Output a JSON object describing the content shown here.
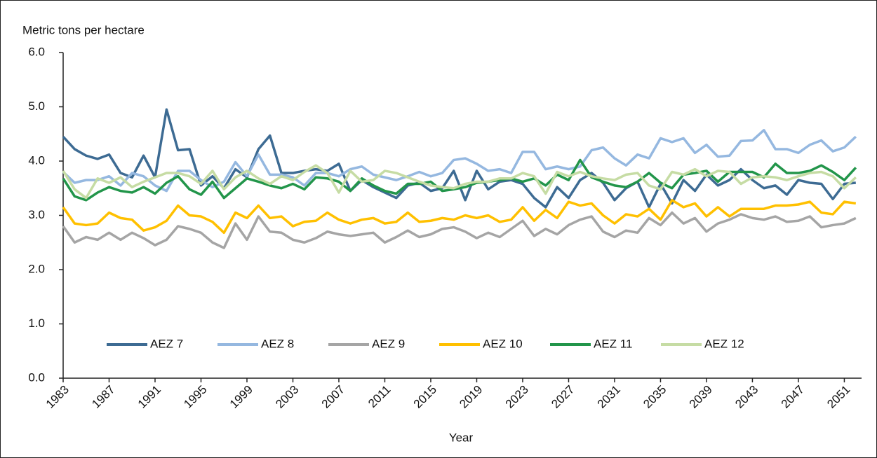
{
  "chart_data": {
    "type": "line",
    "y_label": "Metric tons per hectare",
    "x_label": "Year",
    "x": [
      1983,
      1984,
      1985,
      1986,
      1987,
      1988,
      1989,
      1990,
      1991,
      1992,
      1993,
      1994,
      1995,
      1996,
      1997,
      1998,
      1999,
      2000,
      2001,
      2002,
      2003,
      2004,
      2005,
      2006,
      2007,
      2008,
      2009,
      2010,
      2011,
      2012,
      2013,
      2014,
      2015,
      2016,
      2017,
      2018,
      2019,
      2020,
      2021,
      2022,
      2023,
      2024,
      2025,
      2026,
      2027,
      2028,
      2029,
      2030,
      2031,
      2032,
      2033,
      2034,
      2035,
      2036,
      2037,
      2038,
      2039,
      2040,
      2041,
      2042,
      2043,
      2044,
      2045,
      2046,
      2047,
      2048,
      2049,
      2050,
      2051,
      2052
    ],
    "xlim": [
      1983,
      2052.5
    ],
    "xticks": [
      1983,
      1987,
      1991,
      1995,
      1999,
      2003,
      2007,
      2011,
      2015,
      2019,
      2023,
      2027,
      2031,
      2035,
      2039,
      2043,
      2047,
      2051
    ],
    "ylim": [
      0,
      6
    ],
    "yticks": [
      {
        "value": 0,
        "label": "0.0"
      },
      {
        "value": 1,
        "label": "1.0"
      },
      {
        "value": 2,
        "label": "2.0"
      },
      {
        "value": 3,
        "label": "3.0"
      },
      {
        "value": 4,
        "label": "4.0"
      },
      {
        "value": 5,
        "label": "5.0"
      },
      {
        "value": 6,
        "label": "6.0"
      }
    ],
    "grid": false,
    "legend": "bottom",
    "series": [
      {
        "name": "AEZ 7",
        "color": "#3d6b93",
        "values": [
          4.45,
          4.22,
          4.1,
          4.04,
          4.12,
          3.78,
          3.7,
          4.1,
          3.7,
          4.95,
          4.2,
          4.22,
          3.55,
          3.72,
          3.5,
          3.85,
          3.7,
          4.22,
          4.47,
          3.78,
          3.78,
          3.82,
          3.85,
          3.82,
          3.95,
          3.45,
          3.65,
          3.52,
          3.42,
          3.32,
          3.55,
          3.6,
          3.45,
          3.5,
          3.82,
          3.28,
          3.82,
          3.48,
          3.62,
          3.65,
          3.58,
          3.32,
          3.15,
          3.52,
          3.32,
          3.65,
          3.78,
          3.6,
          3.28,
          3.5,
          3.62,
          3.15,
          3.58,
          3.22,
          3.65,
          3.45,
          3.75,
          3.55,
          3.65,
          3.85,
          3.65,
          3.5,
          3.55,
          3.38,
          3.65,
          3.6,
          3.58,
          3.3,
          3.58,
          3.6
        ]
      },
      {
        "name": "AEZ 8",
        "color": "#95b8e0",
        "values": [
          3.8,
          3.6,
          3.65,
          3.65,
          3.72,
          3.55,
          3.78,
          3.72,
          3.55,
          3.45,
          3.82,
          3.82,
          3.65,
          3.52,
          3.62,
          3.98,
          3.72,
          4.12,
          3.75,
          3.75,
          3.7,
          3.55,
          3.78,
          3.78,
          3.72,
          3.85,
          3.9,
          3.75,
          3.7,
          3.65,
          3.72,
          3.8,
          3.72,
          3.78,
          4.02,
          4.05,
          3.95,
          3.82,
          3.85,
          3.78,
          4.17,
          4.17,
          3.85,
          3.9,
          3.85,
          3.9,
          4.2,
          4.25,
          4.05,
          3.92,
          4.12,
          4.05,
          4.42,
          4.35,
          4.42,
          4.15,
          4.3,
          4.08,
          4.1,
          4.37,
          4.38,
          4.57,
          4.22,
          4.22,
          4.15,
          4.3,
          4.38,
          4.18,
          4.25,
          4.45
        ]
      },
      {
        "name": "AEZ 9",
        "color": "#a5a5a5",
        "values": [
          2.8,
          2.5,
          2.6,
          2.55,
          2.68,
          2.55,
          2.68,
          2.58,
          2.45,
          2.55,
          2.8,
          2.75,
          2.68,
          2.5,
          2.4,
          2.85,
          2.55,
          2.98,
          2.7,
          2.68,
          2.55,
          2.5,
          2.58,
          2.7,
          2.65,
          2.62,
          2.65,
          2.68,
          2.5,
          2.6,
          2.72,
          2.6,
          2.65,
          2.75,
          2.78,
          2.7,
          2.58,
          2.68,
          2.6,
          2.75,
          2.9,
          2.62,
          2.75,
          2.65,
          2.82,
          2.92,
          2.98,
          2.7,
          2.6,
          2.72,
          2.68,
          2.95,
          2.82,
          3.05,
          2.85,
          2.95,
          2.7,
          2.85,
          2.92,
          3.02,
          2.95,
          2.92,
          2.98,
          2.88,
          2.9,
          2.98,
          2.78,
          2.82,
          2.85,
          2.95
        ]
      },
      {
        "name": "AEZ 10",
        "color": "#ffc000",
        "values": [
          3.15,
          2.85,
          2.82,
          2.85,
          3.05,
          2.95,
          2.92,
          2.72,
          2.78,
          2.9,
          3.18,
          3.0,
          2.98,
          2.88,
          2.68,
          3.05,
          2.95,
          3.18,
          2.95,
          2.98,
          2.8,
          2.88,
          2.9,
          3.05,
          2.92,
          2.85,
          2.92,
          2.95,
          2.85,
          2.88,
          3.05,
          2.88,
          2.9,
          2.95,
          2.92,
          3.0,
          2.95,
          3.0,
          2.88,
          2.92,
          3.15,
          2.9,
          3.1,
          2.95,
          3.25,
          3.18,
          3.22,
          3.0,
          2.85,
          3.02,
          2.98,
          3.12,
          2.92,
          3.28,
          3.15,
          3.22,
          2.98,
          3.15,
          2.98,
          3.12,
          3.12,
          3.12,
          3.18,
          3.18,
          3.2,
          3.25,
          3.05,
          3.02,
          3.25,
          3.22
        ]
      },
      {
        "name": "AEZ 11",
        "color": "#22954a",
        "values": [
          3.68,
          3.35,
          3.28,
          3.42,
          3.52,
          3.45,
          3.42,
          3.52,
          3.4,
          3.6,
          3.72,
          3.48,
          3.38,
          3.62,
          3.32,
          3.5,
          3.68,
          3.62,
          3.55,
          3.5,
          3.58,
          3.48,
          3.7,
          3.68,
          3.62,
          3.45,
          3.68,
          3.55,
          3.45,
          3.4,
          3.58,
          3.58,
          3.62,
          3.45,
          3.48,
          3.52,
          3.6,
          3.62,
          3.65,
          3.68,
          3.62,
          3.68,
          3.55,
          3.75,
          3.65,
          4.02,
          3.7,
          3.62,
          3.55,
          3.52,
          3.62,
          3.78,
          3.6,
          3.5,
          3.75,
          3.78,
          3.82,
          3.62,
          3.8,
          3.8,
          3.8,
          3.7,
          3.95,
          3.78,
          3.78,
          3.82,
          3.92,
          3.8,
          3.65,
          3.88
        ]
      },
      {
        "name": "AEZ 12",
        "color": "#c6dca4",
        "values": [
          3.82,
          3.48,
          3.32,
          3.68,
          3.6,
          3.7,
          3.52,
          3.62,
          3.7,
          3.78,
          3.78,
          3.72,
          3.58,
          3.82,
          3.48,
          3.7,
          3.82,
          3.68,
          3.58,
          3.72,
          3.65,
          3.8,
          3.92,
          3.78,
          3.42,
          3.82,
          3.62,
          3.65,
          3.82,
          3.78,
          3.7,
          3.62,
          3.55,
          3.52,
          3.5,
          3.58,
          3.62,
          3.62,
          3.68,
          3.68,
          3.78,
          3.72,
          3.4,
          3.8,
          3.72,
          3.8,
          3.72,
          3.68,
          3.65,
          3.75,
          3.78,
          3.55,
          3.48,
          3.8,
          3.75,
          3.85,
          3.72,
          3.82,
          3.8,
          3.58,
          3.7,
          3.72,
          3.7,
          3.65,
          3.72,
          3.78,
          3.8,
          3.72,
          3.5,
          3.7
        ]
      }
    ]
  }
}
